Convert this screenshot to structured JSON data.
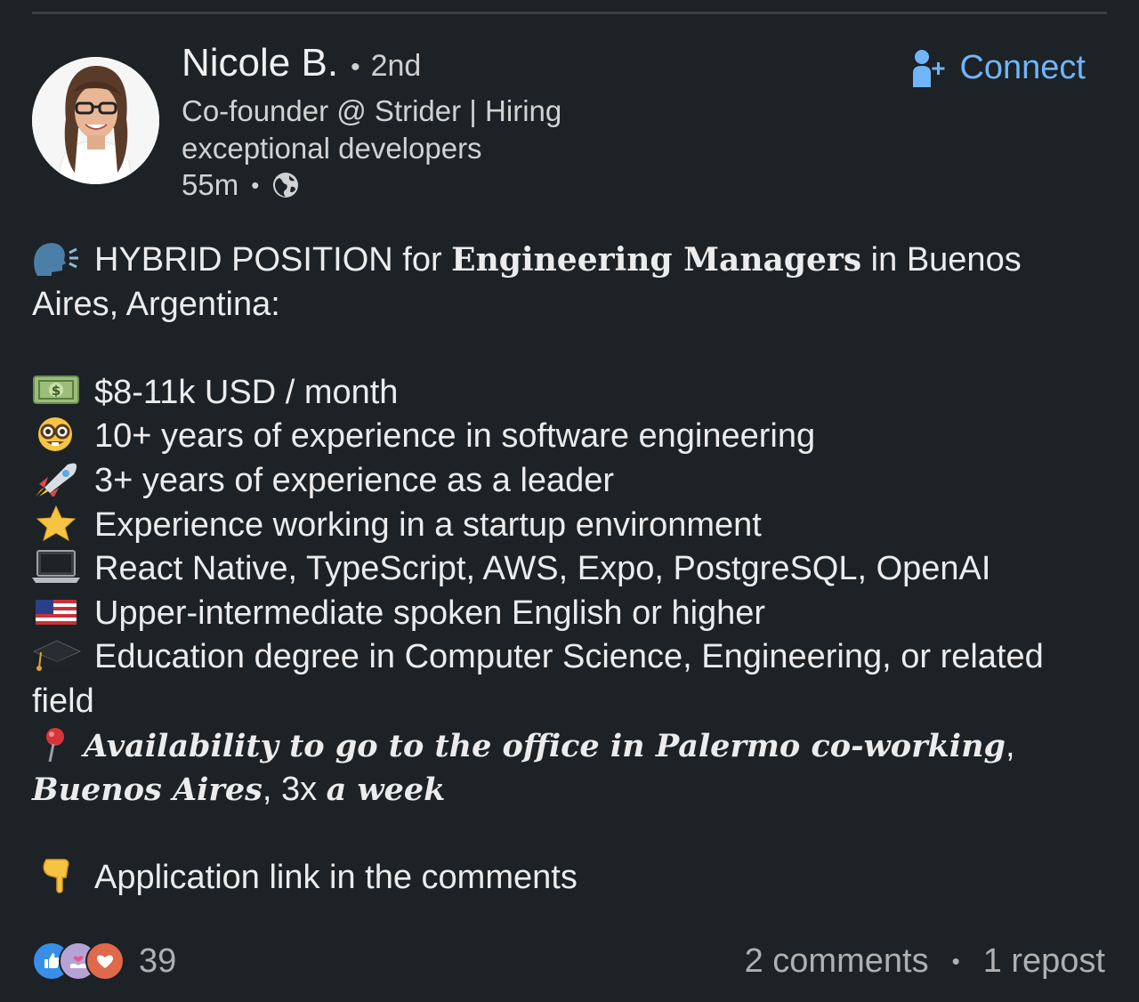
{
  "author": {
    "name": "Nicole B.",
    "separator": "•",
    "degree": "2nd",
    "headline": "Co-founder @ Strider | Hiring exceptional developers",
    "time": "55m",
    "meta_separator": "•"
  },
  "actions": {
    "connect_label": "Connect"
  },
  "post": {
    "intro_prefix": "HYBRID POSITION for ",
    "intro_bold": "Engineering Managers",
    "intro_suffix": " in Buenos Aires, Argentina:",
    "items": [
      {
        "icon": "money-icon",
        "text": "$8-11k USD / month"
      },
      {
        "icon": "nerd-face-icon",
        "text": "10+ years of experience in software engineering"
      },
      {
        "icon": "rocket-icon",
        "text": "3+ years of experience as a leader"
      },
      {
        "icon": "star-icon",
        "text": "Experience working in a startup environment"
      },
      {
        "icon": "laptop-icon",
        "text": "React Native, TypeScript, AWS, Expo, PostgreSQL, OpenAI"
      },
      {
        "icon": "us-flag-icon",
        "text": "Upper-intermediate spoken English or higher"
      },
      {
        "icon": "graduation-cap-icon",
        "text": "Education degree in Computer Science, Engineering, or related field"
      }
    ],
    "office": {
      "italic_1": "Availability to go to the office in Palermo co-working",
      "comma_1": ", ",
      "italic_2": "Buenos Aires",
      "comma_2": ", 3x ",
      "italic_3": "a week"
    },
    "cta": "Application link in the comments"
  },
  "social": {
    "reaction_count": "39",
    "comments": "2 comments",
    "separator": "•",
    "reposts": "1 repost"
  },
  "colors": {
    "background": "#1d2226",
    "accent": "#70b5f9",
    "text": "#ececec",
    "muted": "#b0b0b0"
  }
}
